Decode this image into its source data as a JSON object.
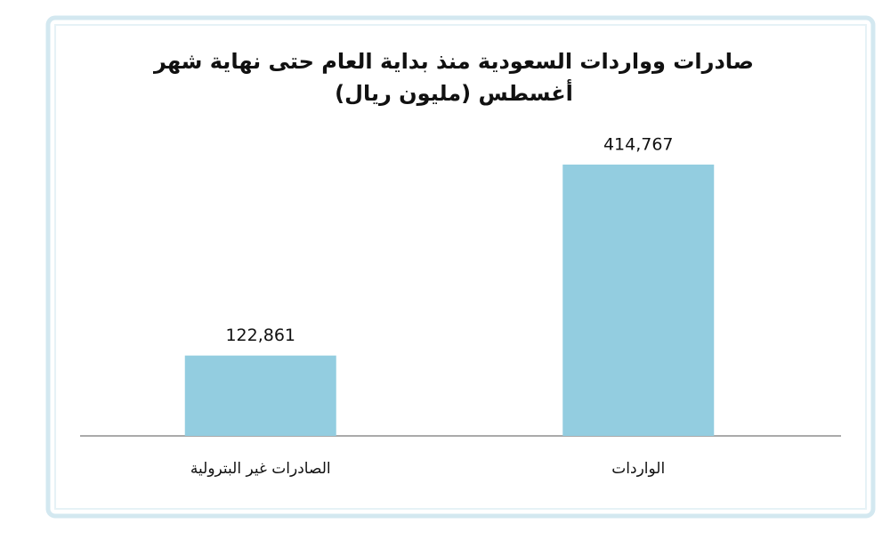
{
  "chart_data": {
    "type": "bar",
    "title": [
      "صادرات وواردات السعودية منذ بداية العام حتى نهاية شهر",
      "أغسطس (مليون ريال)"
    ],
    "categories": [
      "الصادرات غير البترولية",
      "الواردات"
    ],
    "values": [
      122861,
      414767
    ],
    "value_labels": [
      "122,861",
      "414,767"
    ],
    "color": "#93cde0"
  }
}
